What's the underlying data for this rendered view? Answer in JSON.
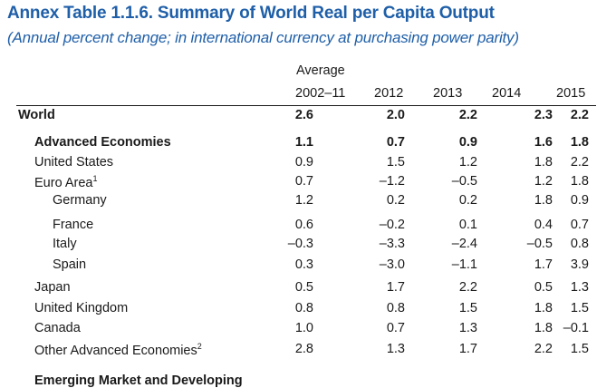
{
  "title": "Annex Table 1.1.6. Summary of World Real per Capita Output",
  "subtitle": "(Annual percent change; in international currency at purchasing power parity)",
  "columns": {
    "avg_label": "Average",
    "headers": [
      "2002–11",
      "2012",
      "2013",
      "2014",
      "2015"
    ]
  },
  "rows": [
    {
      "label": "World",
      "sup": "",
      "indent": 0,
      "bold": true,
      "values": [
        "2.6",
        "2.0",
        "2.2",
        "2.3",
        "2.2"
      ]
    },
    {
      "label": "Advanced Economies",
      "sup": "",
      "indent": 1,
      "bold": true,
      "values": [
        "1.1",
        "0.7",
        "0.9",
        "1.6",
        "1.8"
      ]
    },
    {
      "label": "United States",
      "sup": "",
      "indent": 1,
      "bold": false,
      "values": [
        "0.9",
        "1.5",
        "1.2",
        "1.8",
        "2.2"
      ]
    },
    {
      "label": "Euro Area",
      "sup": "1",
      "indent": 1,
      "bold": false,
      "values": [
        "0.7",
        "–1.2",
        "–0.5",
        "1.2",
        "1.8"
      ]
    },
    {
      "label": "Germany",
      "sup": "",
      "indent": 2,
      "bold": false,
      "values": [
        "1.2",
        "0.2",
        "0.2",
        "1.8",
        "0.9"
      ]
    },
    {
      "label": "France",
      "sup": "",
      "indent": 2,
      "bold": false,
      "values": [
        "0.6",
        "–0.2",
        "0.1",
        "0.4",
        "0.7"
      ]
    },
    {
      "label": "Italy",
      "sup": "",
      "indent": 2,
      "bold": false,
      "values": [
        "–0.3",
        "–3.3",
        "–2.4",
        "–0.5",
        "0.8"
      ]
    },
    {
      "label": "Spain",
      "sup": "",
      "indent": 2,
      "bold": false,
      "values": [
        "0.3",
        "–3.0",
        "–1.1",
        "1.7",
        "3.9"
      ]
    },
    {
      "label": "Japan",
      "sup": "",
      "indent": 1,
      "bold": false,
      "values": [
        "0.5",
        "1.7",
        "2.2",
        "0.5",
        "1.3"
      ]
    },
    {
      "label": "United Kingdom",
      "sup": "",
      "indent": 1,
      "bold": false,
      "values": [
        "0.8",
        "0.8",
        "1.5",
        "1.8",
        "1.5"
      ]
    },
    {
      "label": "Canada",
      "sup": "",
      "indent": 1,
      "bold": false,
      "values": [
        "1.0",
        "0.7",
        "1.3",
        "1.8",
        "–0.1"
      ]
    },
    {
      "label": "Other Advanced Economies",
      "sup": "2",
      "indent": 1,
      "bold": false,
      "values": [
        "2.8",
        "1.3",
        "1.7",
        "2.2",
        "1.5"
      ]
    }
  ],
  "next_section": "Emerging Market and Developing"
}
